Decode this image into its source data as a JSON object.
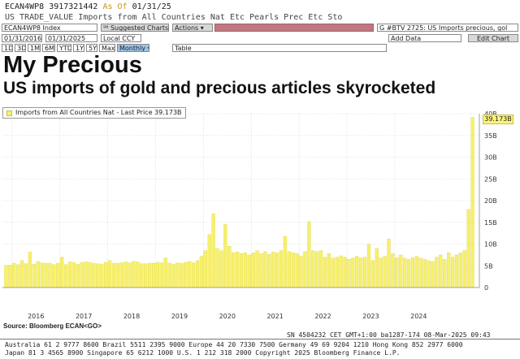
{
  "header": {
    "ticker": "ECAN4WP8",
    "code": "3917321442",
    "as_of_label": "As Of",
    "as_of_date": "01/31/25",
    "description": "US TRADE_VALUE Imports from All Countries Nat Etc Pearls Prec Etc Sto"
  },
  "toolbar1": {
    "index_field": "ECAN4WP8 Index",
    "suggested": "⁹⁶ Suggested Charts",
    "actions": "Actions ▾",
    "news_headline": "G #BTV 2725: US Imports precious, gol"
  },
  "toolbar2": {
    "start_date": "01/31/2016",
    "end_date": "01/31/2025",
    "currency": "Local CCY",
    "add_data": "Add Data",
    "edit_chart": "Edit Chart"
  },
  "toolbar3": {
    "periods": [
      "1D",
      "3D",
      "1M",
      "6M",
      "YTD",
      "1Y",
      "5Y",
      "Max"
    ],
    "frequency": "Monthly ▾",
    "table": "Table"
  },
  "title": "My Precious",
  "subtitle": "US imports of gold and precious articles skyrocketed",
  "legend": {
    "label": "Imports from All Countries Nat - Last Price 39.173B"
  },
  "last_value_label": "39.173B",
  "source": "Source: Bloomberg ECAN<GO>",
  "footer": {
    "line1": "SN 4504232 CET  GMT+1:00 ba1287-174 08-Mar-2025 09:43",
    "line2": "Australia 61 2 9777 8600 Brazil 5511 2395 9000 Europe 44 20 7330 7500 Germany 49 69 9204 1210 Hong Kong 852 2977 6000",
    "line3": "Japan 81 3 4565 8900       Singapore 65 6212 1000       U.S. 1 212 318 2000       Copyright 2025 Bloomberg Finance L.P."
  },
  "colors": {
    "bar": "#f7f06a",
    "bar_edge": "#d8d04a",
    "grid": "#c8c8c8"
  },
  "chart_data": {
    "type": "bar",
    "x_start": "2015-11",
    "x_end": "2025-01",
    "ylim": [
      0,
      40
    ],
    "yticks": [
      0,
      5,
      10,
      15,
      20,
      25,
      30,
      35,
      40
    ],
    "ytick_labels": [
      "0",
      "5B",
      "10B",
      "15B",
      "20B",
      "25B",
      "30B",
      "35B",
      "40B"
    ],
    "xtick_labels": [
      "2016",
      "2017",
      "2018",
      "2019",
      "2020",
      "2021",
      "2022",
      "2023",
      "2024"
    ],
    "series": [
      {
        "name": "Imports from All Countries Nat",
        "unit": "B",
        "values": [
          5.1,
          5.2,
          5.6,
          5.3,
          6.2,
          5.5,
          8.2,
          5.4,
          6.0,
          5.7,
          5.6,
          5.6,
          5.3,
          5.6,
          7.0,
          5.3,
          5.9,
          5.8,
          5.4,
          5.8,
          5.9,
          5.8,
          5.6,
          5.5,
          5.4,
          5.8,
          6.2,
          5.6,
          5.6,
          5.7,
          5.9,
          5.7,
          6.0,
          5.9,
          5.5,
          5.5,
          5.6,
          5.6,
          5.8,
          5.7,
          6.8,
          5.6,
          5.4,
          5.7,
          5.6,
          5.8,
          6.0,
          5.7,
          6.2,
          7.2,
          8.5,
          12.2,
          17.0,
          9.0,
          8.5,
          14.5,
          9.5,
          8.0,
          8.2,
          7.8,
          8.0,
          7.5,
          8.0,
          8.5,
          7.8,
          8.3,
          7.6,
          8.2,
          8.0,
          8.5,
          11.8,
          8.3,
          8.0,
          7.8,
          7.2,
          8.3,
          15.2,
          8.5,
          8.3,
          8.5,
          7.0,
          7.8,
          6.8,
          7.0,
          7.3,
          7.0,
          6.5,
          6.8,
          7.2,
          6.8,
          7.0,
          10.0,
          6.2,
          9.0,
          6.8,
          7.2,
          11.2,
          7.8,
          6.9,
          7.5,
          6.8,
          6.5,
          6.9,
          7.2,
          6.8,
          6.5,
          6.2,
          6.0,
          7.0,
          7.5,
          6.5,
          8.0,
          7.0,
          7.5,
          8.0,
          8.5,
          18.0,
          39.173
        ]
      }
    ]
  }
}
